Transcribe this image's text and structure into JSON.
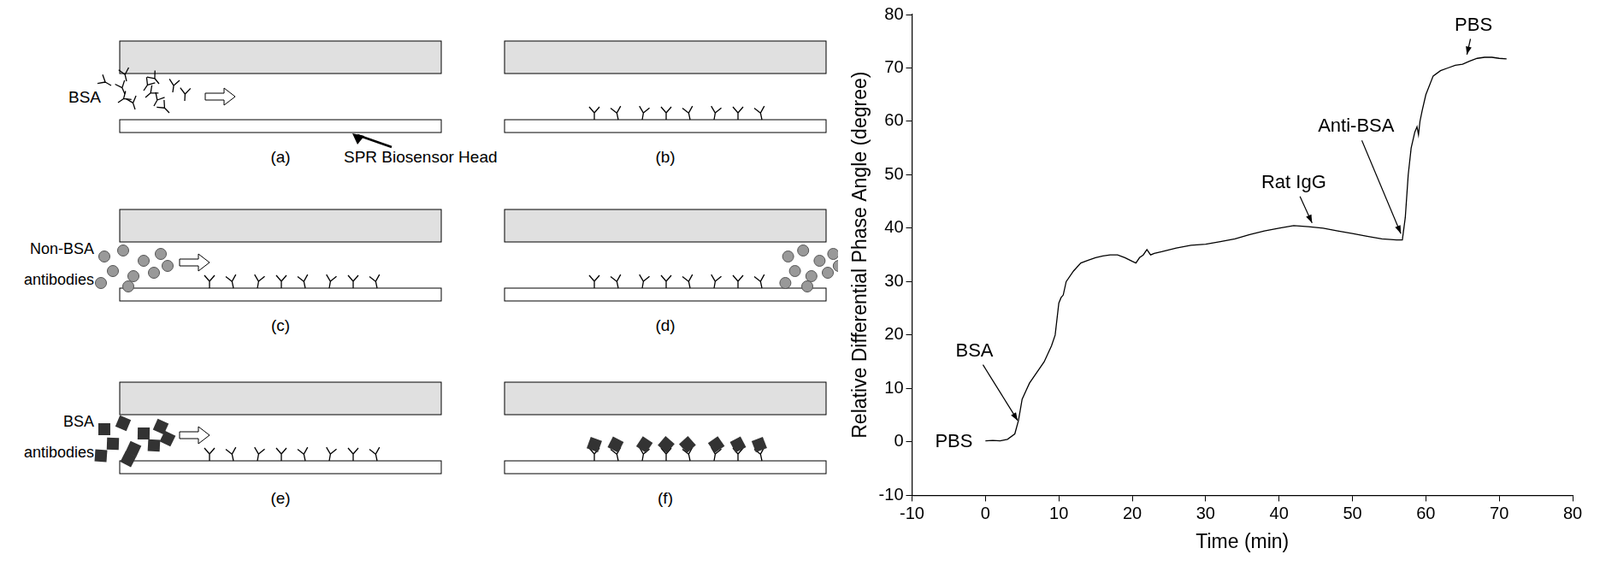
{
  "chart_data": {
    "type": "line",
    "x_label": "Time (min)",
    "y_label": "Relative Differential Phase Angle (degree)",
    "x": [
      0,
      1,
      2,
      3,
      4,
      4.5,
      5,
      5.5,
      6,
      7,
      8,
      9,
      9.5,
      10,
      10.3,
      10.6,
      11,
      12,
      13,
      14,
      15,
      16,
      17,
      18,
      19,
      20,
      20.5,
      21,
      21.5,
      22,
      22.5,
      23,
      24,
      26,
      28,
      30,
      32,
      34,
      36,
      38,
      40,
      42,
      44,
      46,
      48,
      50,
      52,
      54,
      56,
      56.8,
      57.2,
      57.6,
      58,
      58.5,
      58.8,
      59,
      59.2,
      59.5,
      60,
      61,
      62,
      63,
      64,
      65,
      66,
      67,
      68,
      69,
      70,
      71
    ],
    "values": [
      0.2,
      0.3,
      0.2,
      0.5,
      1.5,
      4,
      8,
      9.5,
      11,
      13,
      15,
      18,
      20,
      26,
      27,
      27.5,
      30,
      32,
      33.5,
      34,
      34.5,
      34.8,
      35,
      35,
      34.5,
      33.8,
      33.5,
      34.5,
      35,
      36,
      35,
      35.3,
      35.6,
      36.3,
      36.8,
      37,
      37.5,
      38,
      38.8,
      39.5,
      40,
      40.5,
      40.3,
      40,
      39.5,
      39,
      38.5,
      38,
      37.8,
      37.8,
      42,
      50,
      55,
      58,
      59,
      57.5,
      60,
      62,
      65,
      68.5,
      69.5,
      70,
      70.5,
      70.7,
      71.3,
      71.8,
      72,
      72,
      71.8,
      71.7
    ],
    "color": "#000000",
    "xlim": [
      -10,
      80
    ],
    "xticks": [
      -10,
      0,
      10,
      20,
      30,
      40,
      50,
      60,
      70,
      80
    ],
    "ylim": [
      -10,
      80
    ],
    "yticks": [
      -10,
      0,
      10,
      20,
      30,
      40,
      50,
      60,
      70,
      80
    ],
    "grid": false,
    "annotations": [
      {
        "text": "PBS",
        "x": -4.3,
        "y": 0
      },
      {
        "text": "BSA",
        "x": -1.5,
        "y": 17,
        "arrow_to": [
          4.4,
          4
        ]
      },
      {
        "text": "Rat IgG",
        "x": 42,
        "y": 48.5,
        "arrow_to": [
          44.5,
          41
        ]
      },
      {
        "text": "Anti-BSA",
        "x": 50.5,
        "y": 59,
        "arrow_to": [
          56.6,
          39
        ]
      },
      {
        "text": "PBS",
        "x": 66.5,
        "y": 78,
        "arrow_to": [
          65.6,
          72.5
        ]
      }
    ]
  },
  "diagram": {
    "panels": [
      {
        "letter": "(a)",
        "label": "BSA",
        "pointer": "SPR Biosensor Head"
      },
      {
        "letter": "(b)"
      },
      {
        "letter": "(c)",
        "label": "Non-BSA antibodies"
      },
      {
        "letter": "(d)"
      },
      {
        "letter": "(e)",
        "label": "BSA antibodies"
      },
      {
        "letter": "(f)"
      }
    ]
  }
}
